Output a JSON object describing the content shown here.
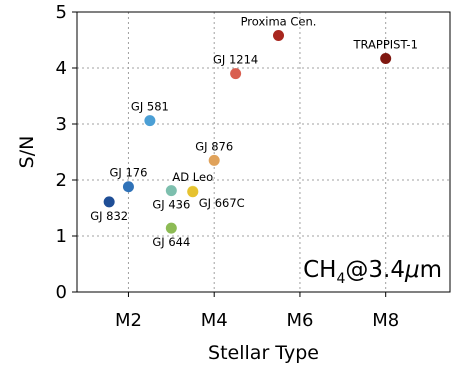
{
  "chart_data": {
    "type": "scatter",
    "xlabel": "Stellar Type",
    "ylabel": "S/N",
    "xlim": [
      0.8,
      9.5
    ],
    "ylim": [
      0,
      5
    ],
    "grid": true,
    "x_ticks": [
      {
        "value": 2,
        "label": "M2"
      },
      {
        "value": 4,
        "label": "M4"
      },
      {
        "value": 6,
        "label": "M6"
      },
      {
        "value": 8,
        "label": "M8"
      }
    ],
    "y_ticks": [
      {
        "value": 0,
        "label": "0"
      },
      {
        "value": 1,
        "label": "1"
      },
      {
        "value": 2,
        "label": "2"
      },
      {
        "value": 3,
        "label": "3"
      },
      {
        "value": 4,
        "label": "4"
      },
      {
        "value": 5,
        "label": "5"
      }
    ],
    "annotation": {
      "prefix": "CH",
      "subscript": "4",
      "suffix": "@3.4",
      "mu": "μ",
      "unit": "m"
    },
    "points": [
      {
        "label": "Proxima Cen.",
        "x": 5.5,
        "y": 4.58,
        "color": "#a8261e",
        "label_pos": "above"
      },
      {
        "label": "TRAPPIST-1",
        "x": 8.0,
        "y": 4.17,
        "color": "#7f1710",
        "label_pos": "above"
      },
      {
        "label": "GJ 1214",
        "x": 4.5,
        "y": 3.9,
        "color": "#d95f50",
        "label_pos": "above"
      },
      {
        "label": "GJ 581",
        "x": 2.5,
        "y": 3.06,
        "color": "#4b9fd5",
        "label_pos": "above"
      },
      {
        "label": "GJ 876",
        "x": 4.0,
        "y": 2.35,
        "color": "#e0a25a",
        "label_pos": "above"
      },
      {
        "label": "GJ 176",
        "x": 2.0,
        "y": 1.88,
        "color": "#2f72b8",
        "label_pos": "above"
      },
      {
        "label": "AD Leo",
        "x": 3.5,
        "y": 1.8,
        "color": "#ede67a",
        "label_pos": "above"
      },
      {
        "label": "GJ 436",
        "x": 3.0,
        "y": 1.81,
        "color": "#7dbfae",
        "label_pos": "below"
      },
      {
        "label": "GJ 667C",
        "x": 3.5,
        "y": 1.79,
        "color": "#e6c230",
        "label_pos": "right"
      },
      {
        "label": "GJ 832",
        "x": 1.55,
        "y": 1.61,
        "color": "#1f4e96",
        "label_pos": "below"
      },
      {
        "label": "GJ 644",
        "x": 3.0,
        "y": 1.14,
        "color": "#8dbb55",
        "label_pos": "below"
      }
    ]
  }
}
